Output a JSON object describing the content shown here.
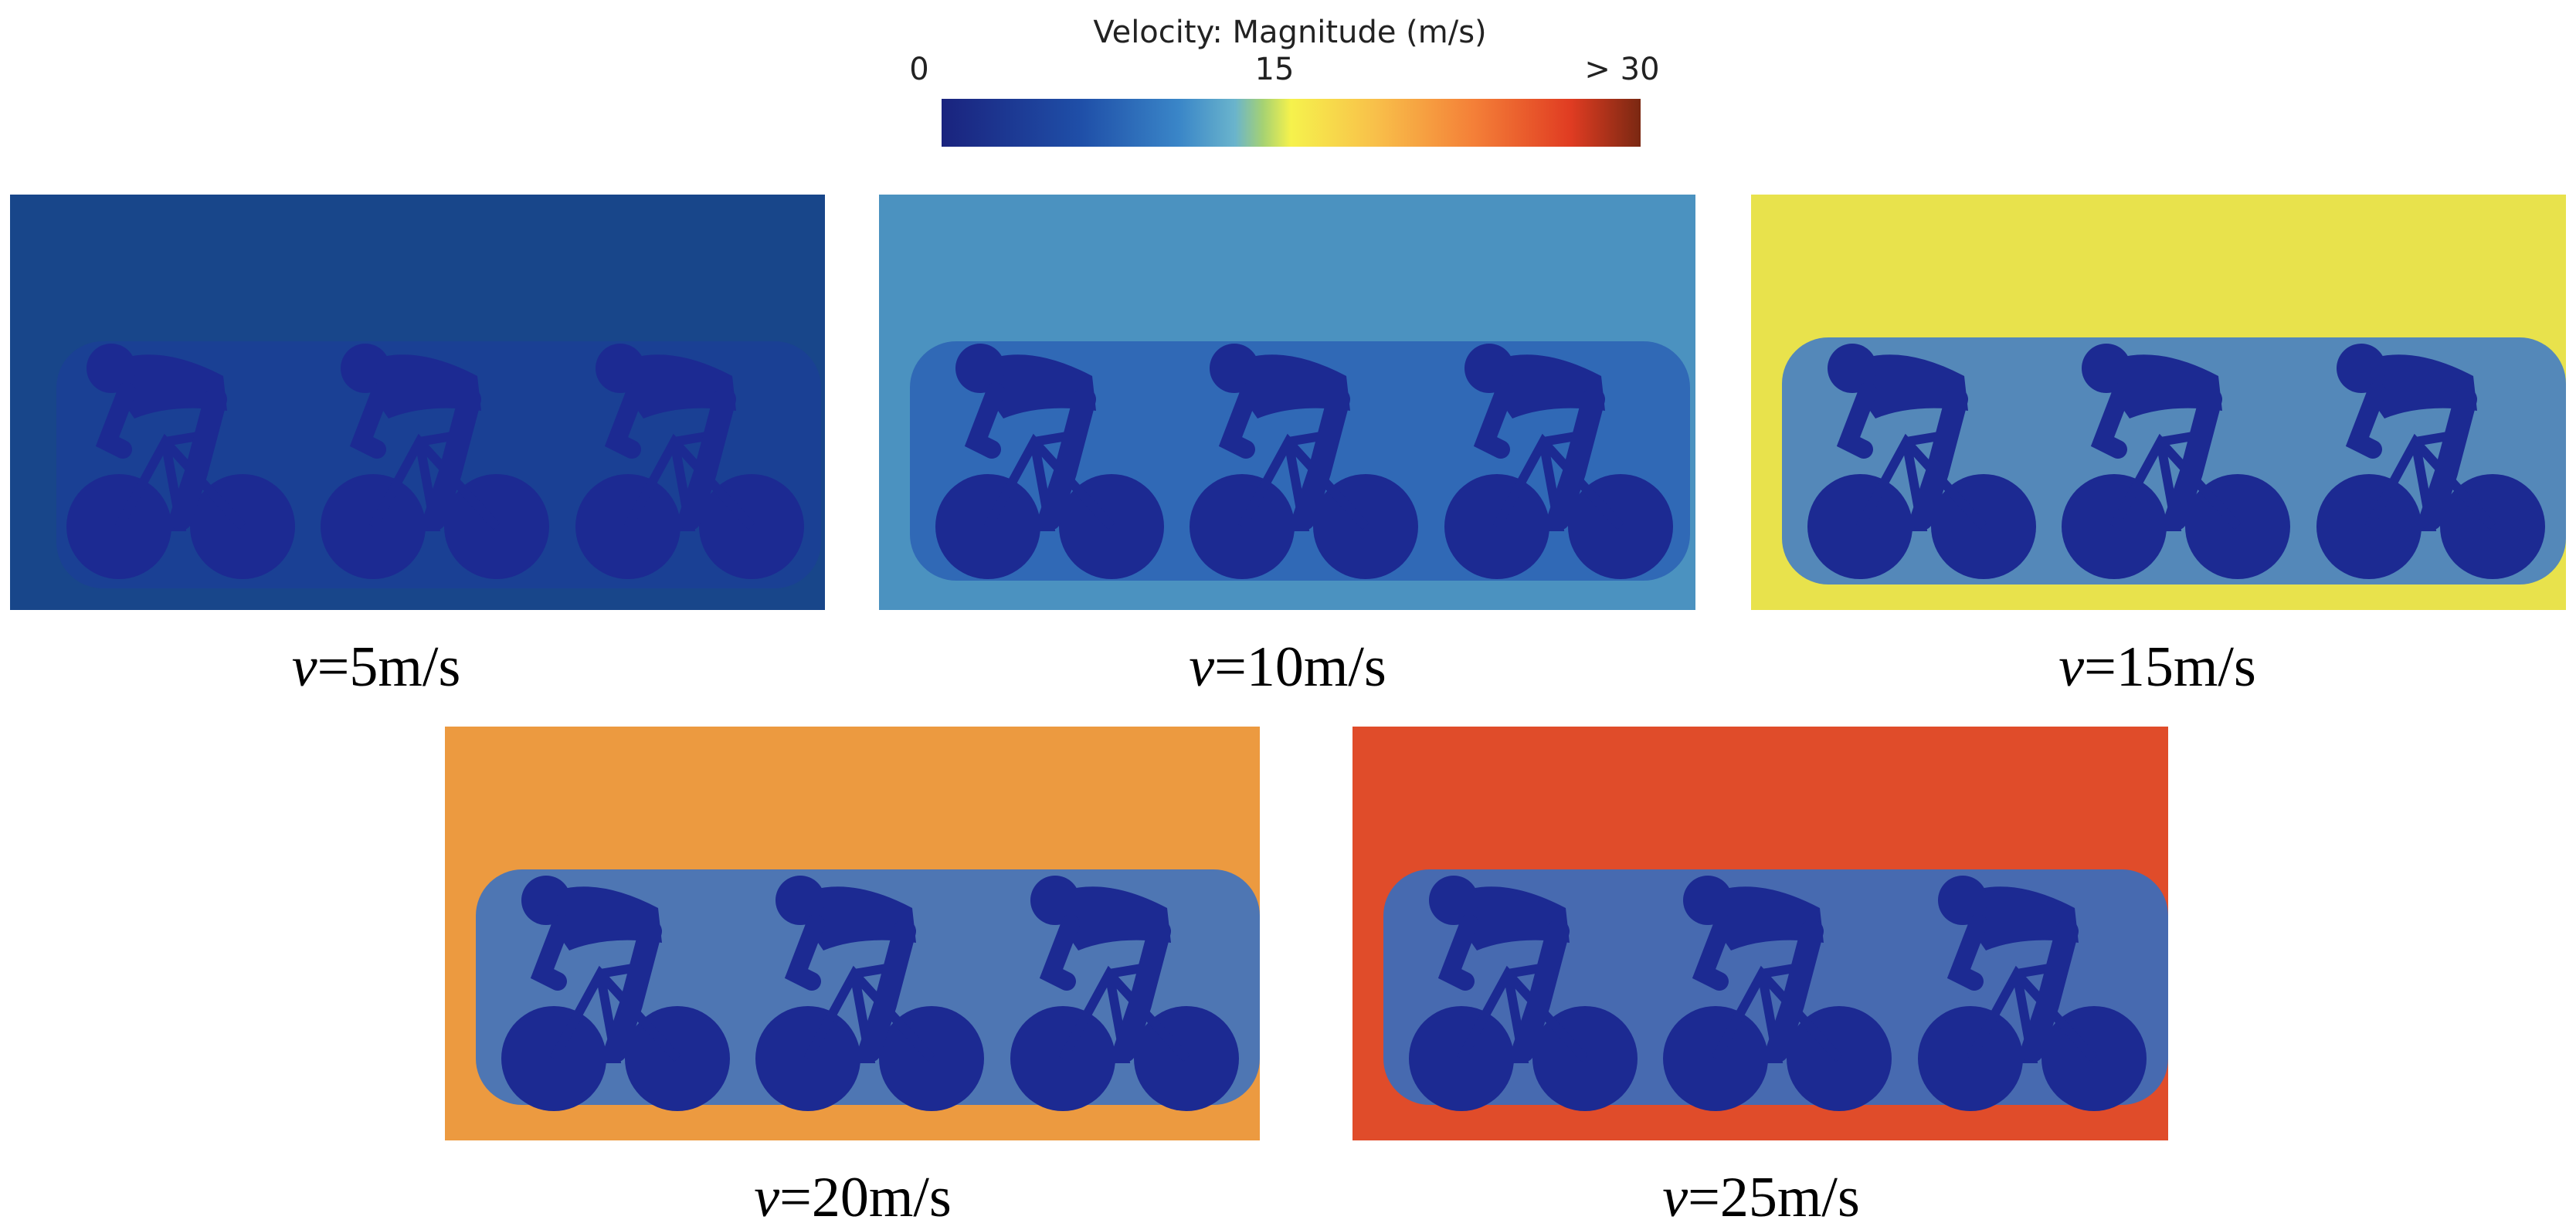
{
  "colorbar": {
    "title": "Velocity: Magnitude (m/s)",
    "ticks": [
      "0",
      "15",
      "> 30"
    ]
  },
  "panels": [
    {
      "symbol": "v",
      "label": "=5m/s"
    },
    {
      "symbol": "v",
      "label": "=10m/s"
    },
    {
      "symbol": "v",
      "label": "=15m/s"
    },
    {
      "symbol": "v",
      "label": "=20m/s"
    },
    {
      "symbol": "v",
      "label": "=25m/s"
    }
  ]
}
